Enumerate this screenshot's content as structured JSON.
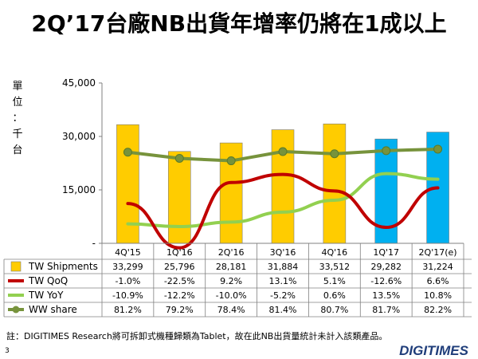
{
  "title": "2Q’17台廠NB出貨年增率仍將在1成以上",
  "footnote": "註：DIGITIMES Research將可拆卸式機種歸類為Tablet，故在此NB出貨量統計未計入該類產品。",
  "page_number": "3",
  "logo_text": "DIGITIMES",
  "colors": {
    "bar_yellow": "#ffcc00",
    "bar_blue": "#00b0f0",
    "qoq_line": "#c00000",
    "yoy_line": "#92d050",
    "share_line": "#77933c"
  },
  "chart_data": {
    "type": "bar",
    "ylabel": "單位：千台",
    "ylim": [
      0,
      45000
    ],
    "yticks": [
      "-",
      "15,000",
      "30,000",
      "45,000"
    ],
    "categories": [
      "4Q'15",
      "1Q'16",
      "2Q'16",
      "3Q'16",
      "4Q'16",
      "1Q'17",
      "2Q'17(e)"
    ],
    "bar_colors": [
      "yellow",
      "yellow",
      "yellow",
      "yellow",
      "yellow",
      "blue",
      "blue"
    ],
    "series": [
      {
        "name": "TW Shipments",
        "type": "bar",
        "values": [
          33299,
          25796,
          28181,
          31884,
          33512,
          29282,
          31224
        ],
        "labels": [
          "33,299",
          "25,796",
          "28,181",
          "31,884",
          "33,512",
          "29,282",
          "31,224"
        ]
      },
      {
        "name": "TW QoQ",
        "type": "line",
        "values": [
          -1.0,
          -22.5,
          9.2,
          13.1,
          5.1,
          -12.6,
          6.6
        ],
        "labels": [
          "-1.0%",
          "-22.5%",
          "9.2%",
          "13.1%",
          "5.1%",
          "-12.6%",
          "6.6%"
        ]
      },
      {
        "name": "TW YoY",
        "type": "line",
        "values": [
          -10.9,
          -12.2,
          -10.0,
          -5.2,
          0.6,
          13.5,
          10.8
        ],
        "labels": [
          "-10.9%",
          "-12.2%",
          "-10.0%",
          "-5.2%",
          "0.6%",
          "13.5%",
          "10.8%"
        ]
      },
      {
        "name": "WW share",
        "type": "line",
        "values": [
          81.2,
          79.2,
          78.4,
          81.4,
          80.7,
          81.7,
          82.2
        ],
        "labels": [
          "81.2%",
          "79.2%",
          "78.4%",
          "81.4%",
          "80.7%",
          "81.7%",
          "82.2%"
        ]
      }
    ],
    "grid": false,
    "legend": "table-below"
  }
}
